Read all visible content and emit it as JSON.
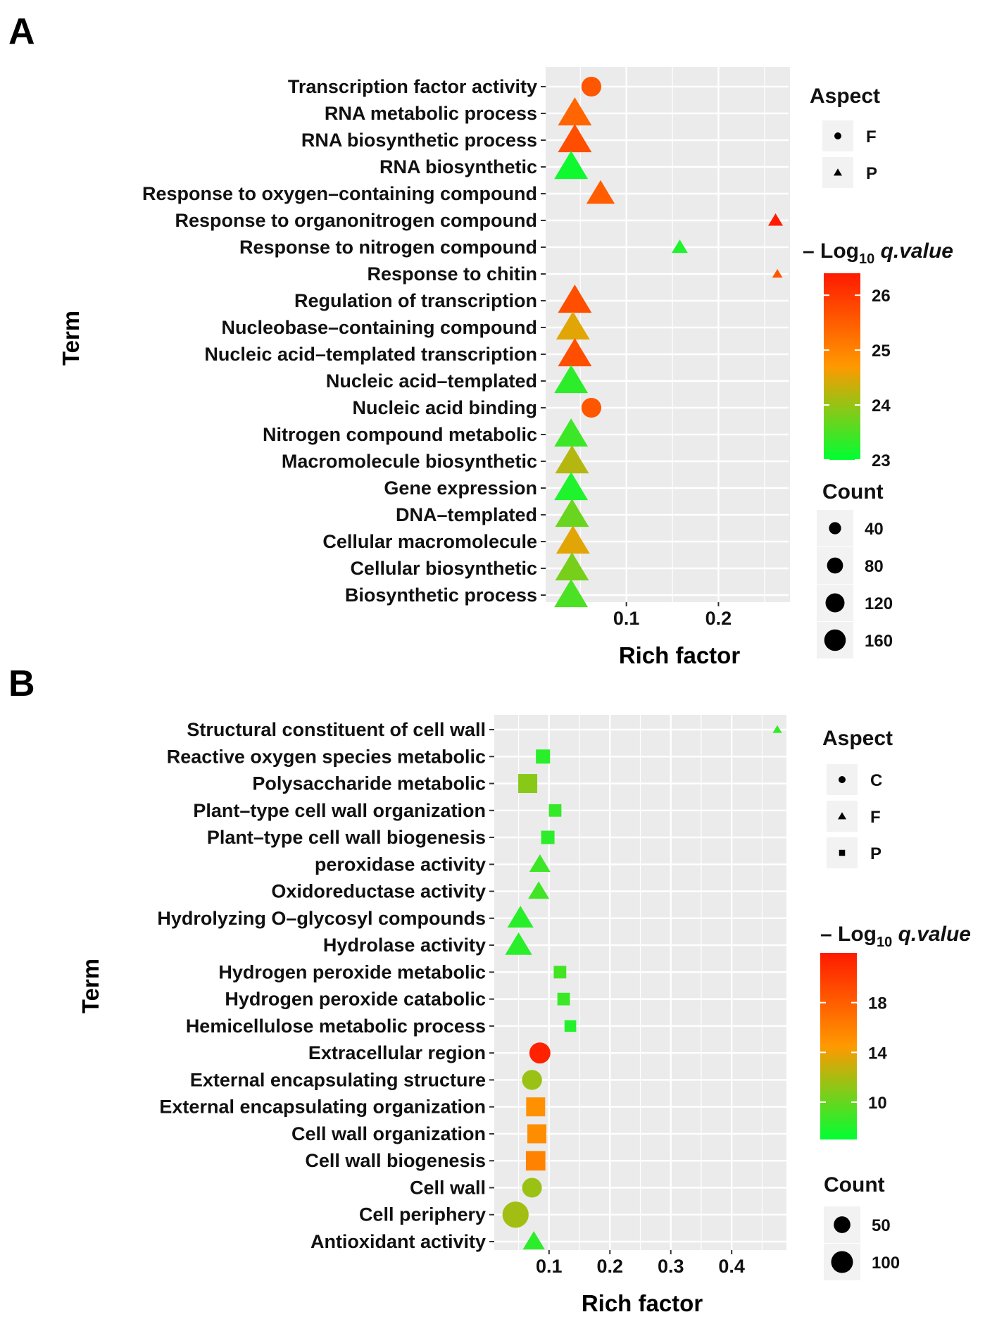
{
  "chart_data": [
    {
      "panel_label": "A",
      "type": "scatter",
      "xlabel": "Rich factor",
      "ylabel": "Term",
      "xlim": [
        0.02,
        0.27
      ],
      "xticks": [
        0.1,
        0.2
      ],
      "grid": true,
      "legend_position": "right",
      "shape_legend": {
        "title": "Aspect",
        "entries": [
          {
            "label": "F",
            "shape": "circle"
          },
          {
            "label": "P",
            "shape": "triangle"
          }
        ]
      },
      "color_legend": {
        "title_prefix": "– Log",
        "title_sub": "10",
        "title_suffix": " q.value",
        "min": 23,
        "max": 26.4,
        "ticks": [
          23,
          24,
          25,
          26
        ],
        "low_color": "#00ff33",
        "mid_color": "#ff9900",
        "high_color": "#ff1a00"
      },
      "size_legend": {
        "title": "Count",
        "entries": [
          40,
          80,
          120,
          160
        ]
      },
      "terms": [
        {
          "term": "Transcription factor activity",
          "x": 0.062,
          "q": 25.6,
          "count": 75,
          "aspect": "F"
        },
        {
          "term": "RNA metabolic process",
          "x": 0.044,
          "q": 25.4,
          "count": 160,
          "aspect": "P"
        },
        {
          "term": "RNA biosynthetic process",
          "x": 0.044,
          "q": 25.7,
          "count": 160,
          "aspect": "P"
        },
        {
          "term": "RNA biosynthetic",
          "x": 0.04,
          "q": 23.1,
          "count": 160,
          "aspect": "P"
        },
        {
          "term": "Response to oxygen–containing compound",
          "x": 0.072,
          "q": 25.5,
          "count": 110,
          "aspect": "P"
        },
        {
          "term": "Response to organonitrogen compound",
          "x": 0.262,
          "q": 26.4,
          "count": 25,
          "aspect": "P"
        },
        {
          "term": "Response to nitrogen compound",
          "x": 0.158,
          "q": 23.2,
          "count": 30,
          "aspect": "P"
        },
        {
          "term": "Response to chitin",
          "x": 0.264,
          "q": 25.6,
          "count": 10,
          "aspect": "P"
        },
        {
          "term": "Regulation of transcription",
          "x": 0.044,
          "q": 25.7,
          "count": 160,
          "aspect": "P"
        },
        {
          "term": "Nucleobase–containing compound",
          "x": 0.042,
          "q": 24.5,
          "count": 160,
          "aspect": "P"
        },
        {
          "term": "Nucleic acid–templated transcription",
          "x": 0.044,
          "q": 25.7,
          "count": 160,
          "aspect": "P"
        },
        {
          "term": "Nucleic acid–templated",
          "x": 0.04,
          "q": 23.3,
          "count": 160,
          "aspect": "P"
        },
        {
          "term": "Nucleic acid binding",
          "x": 0.062,
          "q": 25.6,
          "count": 75,
          "aspect": "F"
        },
        {
          "term": "Nitrogen compound metabolic",
          "x": 0.04,
          "q": 23.4,
          "count": 160,
          "aspect": "P"
        },
        {
          "term": "Macromolecule biosynthetic",
          "x": 0.041,
          "q": 24.2,
          "count": 160,
          "aspect": "P"
        },
        {
          "term": "Gene expression",
          "x": 0.04,
          "q": 23.2,
          "count": 160,
          "aspect": "P"
        },
        {
          "term": "DNA–templated",
          "x": 0.041,
          "q": 23.7,
          "count": 160,
          "aspect": "P"
        },
        {
          "term": "Cellular macromolecule",
          "x": 0.042,
          "q": 24.5,
          "count": 160,
          "aspect": "P"
        },
        {
          "term": "Cellular biosynthetic",
          "x": 0.041,
          "q": 23.8,
          "count": 160,
          "aspect": "P"
        },
        {
          "term": "Biosynthetic process",
          "x": 0.04,
          "q": 23.5,
          "count": 160,
          "aspect": "P"
        }
      ]
    },
    {
      "panel_label": "B",
      "type": "scatter",
      "xlabel": "Rich factor",
      "ylabel": "Term",
      "xlim": [
        0.01,
        0.49
      ],
      "xticks": [
        0.1,
        0.2,
        0.3,
        0.4
      ],
      "grid": true,
      "legend_position": "right",
      "shape_legend": {
        "title": "Aspect",
        "entries": [
          {
            "label": "C",
            "shape": "circle"
          },
          {
            "label": "F",
            "shape": "triangle"
          },
          {
            "label": "P",
            "shape": "square"
          }
        ]
      },
      "color_legend": {
        "title_prefix": "– Log",
        "title_sub": "10",
        "title_suffix": " q.value",
        "min": 7,
        "max": 22,
        "ticks": [
          10,
          14,
          18
        ],
        "low_color": "#00ff33",
        "mid_color": "#ff9900",
        "high_color": "#ff1a00"
      },
      "size_legend": {
        "title": "Count",
        "entries": [
          50,
          100
        ]
      },
      "terms": [
        {
          "term": "Structural constituent of cell wall",
          "x": 0.475,
          "q": 8.5,
          "count": 5,
          "aspect": "F"
        },
        {
          "term": "Reactive oxygen species metabolic",
          "x": 0.09,
          "q": 8.2,
          "count": 40,
          "aspect": "P"
        },
        {
          "term": "Polysaccharide metabolic",
          "x": 0.065,
          "q": 11.0,
          "count": 80,
          "aspect": "P"
        },
        {
          "term": "Plant–type cell wall organization",
          "x": 0.11,
          "q": 8.6,
          "count": 30,
          "aspect": "P"
        },
        {
          "term": "Plant–type cell wall biogenesis",
          "x": 0.098,
          "q": 8.3,
          "count": 35,
          "aspect": "P"
        },
        {
          "term": "peroxidase activity",
          "x": 0.085,
          "q": 8.8,
          "count": 45,
          "aspect": "F"
        },
        {
          "term": "Oxidoreductase activity",
          "x": 0.083,
          "q": 8.9,
          "count": 45,
          "aspect": "F"
        },
        {
          "term": "Hydrolyzing O–glycosyl compounds",
          "x": 0.053,
          "q": 8.2,
          "count": 75,
          "aspect": "F"
        },
        {
          "term": "Hydrolase activity",
          "x": 0.05,
          "q": 8.2,
          "count": 80,
          "aspect": "F"
        },
        {
          "term": "Hydrogen peroxide metabolic",
          "x": 0.118,
          "q": 9.0,
          "count": 30,
          "aspect": "P"
        },
        {
          "term": "Hydrogen peroxide catabolic",
          "x": 0.124,
          "q": 8.7,
          "count": 30,
          "aspect": "P"
        },
        {
          "term": "Hemicellulose metabolic process",
          "x": 0.135,
          "q": 8.0,
          "count": 25,
          "aspect": "P"
        },
        {
          "term": "Extracellular region",
          "x": 0.085,
          "q": 21.5,
          "count": 70,
          "aspect": "C"
        },
        {
          "term": "External encapsulating structure",
          "x": 0.072,
          "q": 11.5,
          "count": 62,
          "aspect": "C"
        },
        {
          "term": "External encapsulating organization",
          "x": 0.078,
          "q": 15.0,
          "count": 80,
          "aspect": "P"
        },
        {
          "term": "Cell wall organization",
          "x": 0.08,
          "q": 15.2,
          "count": 80,
          "aspect": "P"
        },
        {
          "term": "Cell wall biogenesis",
          "x": 0.078,
          "q": 15.8,
          "count": 85,
          "aspect": "P"
        },
        {
          "term": "Cell wall",
          "x": 0.072,
          "q": 11.5,
          "count": 60,
          "aspect": "C"
        },
        {
          "term": "Cell periphery",
          "x": 0.045,
          "q": 11.8,
          "count": 115,
          "aspect": "C"
        },
        {
          "term": "Antioxidant activity",
          "x": 0.075,
          "q": 8.3,
          "count": 50,
          "aspect": "F"
        }
      ]
    }
  ]
}
